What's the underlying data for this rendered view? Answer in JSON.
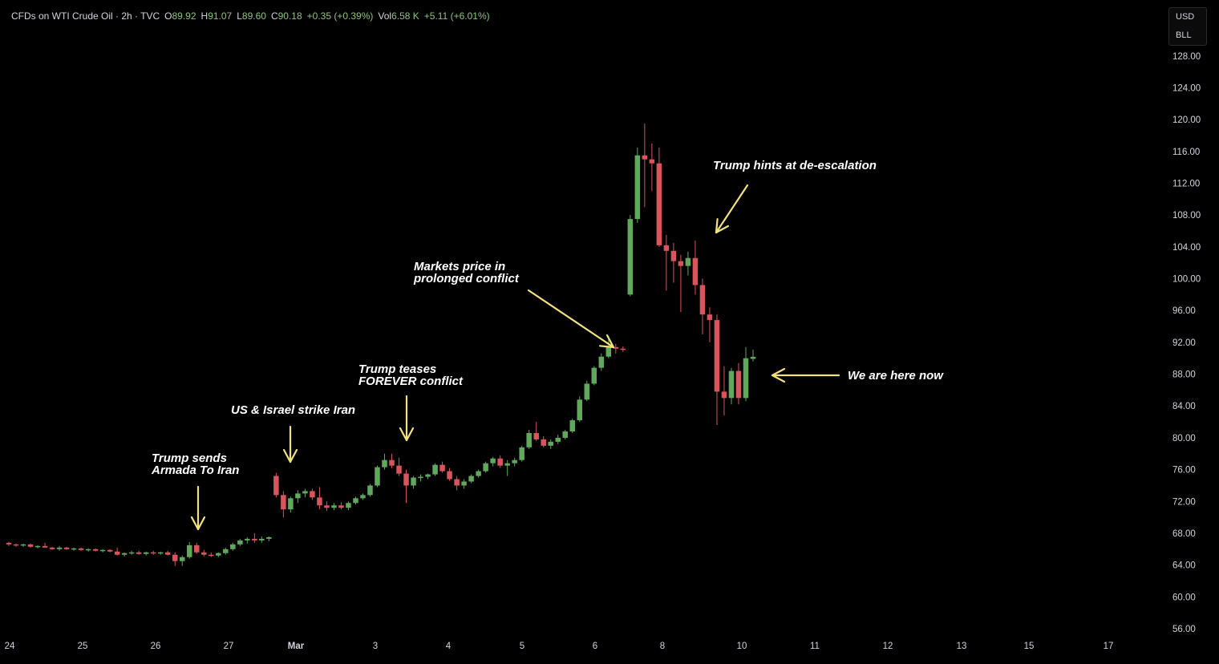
{
  "header": {
    "symbol": "CFDs on WTI Crude Oil · 2h · TVC",
    "open_label": "O",
    "open": "89.92",
    "high_label": "H",
    "high": "91.07",
    "low_label": "L",
    "low": "89.60",
    "close_label": "C",
    "close": "90.18",
    "change": "+0.35 (+0.39%)",
    "vol_label": "Vol",
    "vol": "6.58 K",
    "vol_change": "+5.11 (+6.01%)"
  },
  "unit_box": {
    "currency": "USD",
    "unit": "BLL"
  },
  "colors": {
    "up": "#5fa85c",
    "down": "#d9545b",
    "arrow": "#f3e27a",
    "text": "#ffffff",
    "axis_text": "#d1d4dc",
    "background": "#000000"
  },
  "annotations": {
    "armada": {
      "line1": "Trump sends",
      "line2": "Armada To Iran"
    },
    "strike": {
      "line1": "US & Israel strike Iran"
    },
    "forever": {
      "line1": "Trump teases",
      "line2": "FOREVER conflict"
    },
    "prolonged": {
      "line1": "Markets price in",
      "line2": "prolonged conflict"
    },
    "deescalation": {
      "line1": "Trump hints at de-escalation"
    },
    "here": {
      "line1": "We are here now"
    }
  },
  "chart_data": {
    "type": "candlestick",
    "y_axis": {
      "ticks": [
        "56.00",
        "60.00",
        "64.00",
        "68.00",
        "72.00",
        "76.00",
        "80.00",
        "84.00",
        "88.00",
        "92.00",
        "96.00",
        "100.00",
        "104.00",
        "108.00",
        "112.00",
        "116.00",
        "120.00",
        "124.00",
        "128.00"
      ],
      "range": [
        54,
        130
      ]
    },
    "x_axis": {
      "ticks": [
        "24",
        "25",
        "26",
        "27",
        "Mar",
        "3",
        "4",
        "5",
        "6",
        "8",
        "10",
        "11",
        "12",
        "13",
        "15",
        "17"
      ]
    },
    "candles": [
      [
        66.8,
        66.9,
        66.4,
        66.6
      ],
      [
        66.6,
        66.7,
        66.3,
        66.5
      ],
      [
        66.5,
        66.7,
        66.3,
        66.6
      ],
      [
        66.6,
        66.7,
        66.2,
        66.3
      ],
      [
        66.3,
        66.5,
        66.1,
        66.4
      ],
      [
        66.4,
        66.8,
        66.2,
        66.2
      ],
      [
        66.2,
        66.3,
        65.9,
        66.0
      ],
      [
        66.0,
        66.4,
        65.8,
        66.2
      ],
      [
        66.2,
        66.3,
        65.9,
        66.0
      ],
      [
        66.0,
        66.2,
        65.8,
        66.1
      ],
      [
        66.1,
        66.2,
        65.8,
        65.9
      ],
      [
        65.9,
        66.1,
        65.7,
        66.0
      ],
      [
        66.0,
        66.1,
        65.7,
        65.8
      ],
      [
        65.8,
        66.0,
        65.6,
        65.9
      ],
      [
        65.9,
        66.0,
        65.6,
        65.7
      ],
      [
        65.7,
        66.2,
        65.2,
        65.3
      ],
      [
        65.3,
        65.6,
        65.1,
        65.5
      ],
      [
        65.5,
        65.8,
        65.3,
        65.6
      ],
      [
        65.6,
        65.8,
        65.3,
        65.4
      ],
      [
        65.4,
        65.7,
        65.2,
        65.6
      ],
      [
        65.6,
        65.8,
        65.3,
        65.5
      ],
      [
        65.5,
        65.7,
        65.3,
        65.6
      ],
      [
        65.6,
        65.8,
        65.2,
        65.3
      ],
      [
        65.3,
        65.6,
        63.9,
        64.5
      ],
      [
        64.5,
        65.2,
        63.9,
        65.0
      ],
      [
        65.0,
        66.9,
        64.8,
        66.5
      ],
      [
        66.5,
        66.8,
        65.4,
        65.6
      ],
      [
        65.6,
        65.9,
        65.1,
        65.3
      ],
      [
        65.3,
        65.6,
        65.0,
        65.2
      ],
      [
        65.2,
        65.6,
        65.0,
        65.5
      ],
      [
        65.5,
        66.2,
        65.3,
        66.0
      ],
      [
        66.0,
        66.8,
        65.8,
        66.6
      ],
      [
        66.6,
        67.3,
        66.4,
        67.1
      ],
      [
        67.1,
        67.5,
        66.7,
        67.3
      ],
      [
        67.3,
        68.0,
        66.8,
        67.1
      ],
      [
        67.1,
        67.6,
        66.8,
        67.3
      ],
      [
        67.3,
        67.6,
        67.0,
        67.5
      ],
      [
        75.2,
        75.6,
        72.5,
        72.8
      ],
      [
        72.8,
        73.3,
        70.0,
        71.0
      ],
      [
        71.0,
        72.6,
        70.6,
        72.4
      ],
      [
        72.4,
        73.4,
        71.8,
        73.0
      ],
      [
        73.0,
        73.6,
        72.5,
        73.3
      ],
      [
        73.3,
        73.6,
        72.2,
        72.5
      ],
      [
        72.5,
        73.8,
        71.0,
        71.5
      ],
      [
        71.5,
        72.0,
        70.8,
        71.2
      ],
      [
        71.2,
        71.8,
        70.9,
        71.5
      ],
      [
        71.5,
        71.9,
        71.0,
        71.2
      ],
      [
        71.2,
        72.0,
        70.9,
        71.8
      ],
      [
        71.8,
        72.6,
        71.6,
        72.4
      ],
      [
        72.4,
        73.0,
        72.2,
        72.8
      ],
      [
        72.8,
        74.2,
        72.6,
        74.0
      ],
      [
        74.0,
        76.5,
        73.8,
        76.3
      ],
      [
        76.3,
        78.0,
        76.0,
        77.2
      ],
      [
        77.2,
        78.0,
        76.2,
        76.5
      ],
      [
        76.5,
        77.5,
        75.2,
        75.5
      ],
      [
        75.5,
        76.0,
        71.8,
        74.0
      ],
      [
        74.0,
        75.2,
        73.6,
        75.0
      ],
      [
        75.0,
        75.4,
        74.5,
        75.1
      ],
      [
        75.1,
        75.5,
        74.8,
        75.4
      ],
      [
        75.4,
        76.8,
        75.2,
        76.6
      ],
      [
        76.6,
        77.0,
        75.6,
        75.8
      ],
      [
        75.8,
        76.2,
        74.6,
        74.8
      ],
      [
        74.8,
        75.2,
        73.4,
        74.0
      ],
      [
        74.0,
        74.8,
        73.6,
        74.5
      ],
      [
        74.5,
        75.4,
        74.3,
        75.2
      ],
      [
        75.2,
        76.0,
        75.0,
        75.8
      ],
      [
        75.8,
        77.0,
        75.6,
        76.8
      ],
      [
        76.8,
        77.6,
        76.4,
        77.4
      ],
      [
        77.4,
        77.8,
        76.2,
        76.5
      ],
      [
        76.5,
        77.2,
        75.2,
        76.8
      ],
      [
        76.8,
        77.5,
        76.4,
        77.2
      ],
      [
        77.2,
        79.0,
        77.0,
        78.8
      ],
      [
        78.8,
        81.0,
        78.6,
        80.6
      ],
      [
        80.6,
        82.0,
        79.6,
        79.8
      ],
      [
        79.8,
        80.2,
        78.8,
        79.0
      ],
      [
        79.0,
        79.8,
        78.6,
        79.5
      ],
      [
        79.5,
        80.4,
        79.2,
        80.0
      ],
      [
        80.0,
        81.0,
        79.8,
        80.8
      ],
      [
        80.8,
        82.4,
        80.6,
        82.2
      ],
      [
        82.2,
        85.2,
        82.0,
        84.8
      ],
      [
        84.8,
        87.2,
        84.6,
        86.8
      ],
      [
        86.8,
        89.0,
        86.6,
        88.8
      ],
      [
        88.8,
        90.6,
        88.4,
        90.2
      ],
      [
        90.2,
        92.8,
        90.0,
        91.4
      ],
      [
        91.4,
        91.8,
        90.6,
        91.2
      ],
      [
        91.2,
        91.5,
        90.8,
        91.1
      ],
      [
        98.0,
        108.0,
        97.8,
        107.5
      ],
      [
        107.5,
        116.5,
        107.0,
        115.5
      ],
      [
        115.5,
        119.5,
        109.0,
        115.0
      ],
      [
        115.0,
        117.0,
        111.0,
        114.5
      ],
      [
        114.5,
        116.5,
        104.0,
        104.2
      ],
      [
        104.2,
        105.5,
        98.5,
        103.5
      ],
      [
        103.5,
        104.5,
        99.5,
        102.2
      ],
      [
        102.2,
        103.0,
        95.8,
        101.6
      ],
      [
        101.6,
        103.4,
        100.4,
        102.6
      ],
      [
        102.6,
        104.8,
        98.0,
        99.2
      ],
      [
        99.2,
        100.0,
        93.0,
        95.5
      ],
      [
        95.5,
        96.4,
        92.0,
        94.8
      ],
      [
        94.8,
        95.5,
        81.6,
        85.8
      ],
      [
        85.8,
        89.0,
        82.8,
        85.0
      ],
      [
        85.0,
        88.8,
        84.2,
        88.4
      ],
      [
        88.4,
        89.4,
        84.2,
        85.0
      ],
      [
        85.0,
        91.4,
        84.6,
        90.0
      ],
      [
        89.92,
        91.07,
        89.6,
        90.18
      ]
    ]
  }
}
